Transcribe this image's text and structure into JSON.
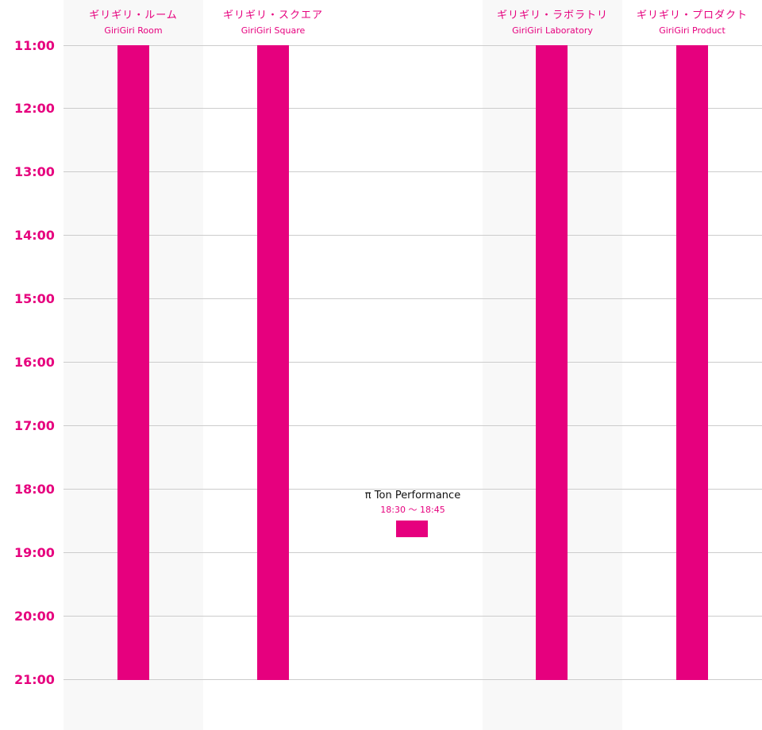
{
  "venues": [
    {
      "jp": "ギリギリ・ルーム",
      "en": "GiriGiri Room"
    },
    {
      "jp": "ギリギリ・スクエア",
      "en": "GiriGiri Square"
    },
    {
      "jp": "",
      "en": ""
    },
    {
      "jp": "ギリギリ・ラボラトリ",
      "en": "GiriGiri Laboratory"
    },
    {
      "jp": "ギリギリ・プロダクト",
      "en": "GiriGiri Product"
    }
  ],
  "hours": [
    "11:00",
    "12:00",
    "13:00",
    "14:00",
    "15:00",
    "16:00",
    "17:00",
    "18:00",
    "19:00",
    "20:00",
    "21:00"
  ],
  "event": {
    "title": "π Ton Performance",
    "time": "18:30 〜 18:45",
    "start": "18:30",
    "end": "18:45"
  },
  "sessions": [
    {
      "venue": "GiriGiri Room",
      "start": "11:00",
      "end": "21:00"
    },
    {
      "venue": "GiriGiri Square",
      "start": "11:00",
      "end": "21:00"
    },
    {
      "venue": "GiriGiri Laboratory",
      "start": "11:00",
      "end": "21:00"
    },
    {
      "venue": "GiriGiri Product",
      "start": "11:00",
      "end": "21:00"
    }
  ],
  "colors": {
    "accent": "#e6007e",
    "column_shade": "#f8f8f8",
    "grid_line": "#cccccc"
  }
}
